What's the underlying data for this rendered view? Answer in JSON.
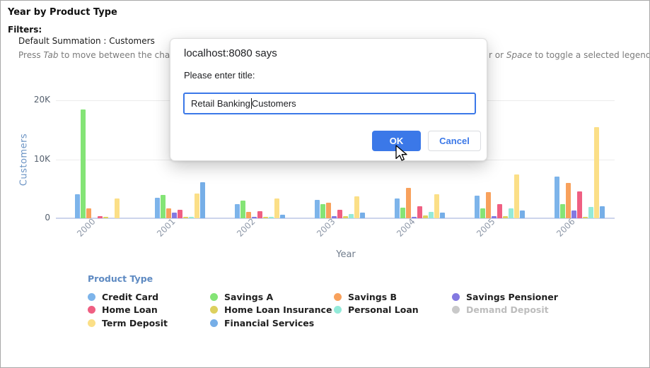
{
  "header": {
    "title": "Year by Product Type",
    "filters_label": "Filters:",
    "filter_value": "Default Summation : Customers",
    "instructions": {
      "left_pre": "Press ",
      "left_key": "Tab",
      "left_post": " to move between the chart data, le",
      "right_pre": "r or ",
      "right_key": "Space",
      "right_post": " to toggle a selected legend item"
    }
  },
  "dialog": {
    "origin": "localhost:8080 says",
    "prompt": "Please enter title:",
    "input_before_caret": "Retail Banking ",
    "input_after_caret": "Customers",
    "ok_label": "OK",
    "cancel_label": "Cancel",
    "accent_color": "#3b78e8"
  },
  "chart_data": {
    "type": "bar",
    "title": "Year by Product Type",
    "xlabel": "Year",
    "ylabel": "Customers",
    "categories": [
      "2000",
      "2001",
      "2002",
      "2003",
      "2004",
      "2005",
      "2006"
    ],
    "ylim": [
      0,
      20000
    ],
    "yticks": [
      {
        "label": "20K",
        "value": 20000
      },
      {
        "label": "10K",
        "value": 10000
      },
      {
        "label": "0",
        "value": 0
      }
    ],
    "grid": true,
    "legend_position": "bottom",
    "legend_title": "Product Type",
    "series": [
      {
        "name": "Credit Card",
        "color": "#7db4ea",
        "values": [
          4100,
          3500,
          2400,
          3100,
          3300,
          3800,
          7100
        ]
      },
      {
        "name": "Savings A",
        "color": "#84e476",
        "values": [
          18500,
          4000,
          3000,
          2400,
          1800,
          1700,
          2400
        ]
      },
      {
        "name": "Savings B",
        "color": "#f8a15c",
        "values": [
          1700,
          1700,
          1100,
          2600,
          5100,
          4400,
          6000
        ]
      },
      {
        "name": "Savings Pensioner",
        "color": "#8379e1",
        "values": [
          0,
          900,
          200,
          300,
          250,
          400,
          1300
        ]
      },
      {
        "name": "Home Loan",
        "color": "#ef5f82",
        "values": [
          400,
          1400,
          1200,
          1400,
          2000,
          2400,
          4500
        ]
      },
      {
        "name": "Home Loan Insurance",
        "color": "#ddd05e",
        "values": [
          250,
          200,
          200,
          350,
          500,
          300,
          200
        ]
      },
      {
        "name": "Personal Loan",
        "color": "#93ead9",
        "values": [
          0,
          200,
          250,
          700,
          1100,
          1700,
          1900
        ]
      },
      {
        "name": "Term Deposit",
        "color": "#fbdf87",
        "values": [
          3400,
          4200,
          3400,
          3700,
          4100,
          7400,
          15400
        ]
      },
      {
        "name": "Financial Services",
        "color": "#76aee7",
        "values": [
          0,
          6100,
          600,
          900,
          1000,
          1300,
          2000
        ]
      }
    ],
    "legend_items": [
      {
        "name": "Credit Card",
        "color": "#7db4ea",
        "disabled": false
      },
      {
        "name": "Savings A",
        "color": "#84e476",
        "disabled": false
      },
      {
        "name": "Savings B",
        "color": "#f8a15c",
        "disabled": false
      },
      {
        "name": "Savings Pensioner",
        "color": "#8379e1",
        "disabled": false
      },
      {
        "name": "Home Loan",
        "color": "#ef5f82",
        "disabled": false
      },
      {
        "name": "Home Loan Insurance",
        "color": "#ddd05e",
        "disabled": false
      },
      {
        "name": "Personal Loan",
        "color": "#93ead9",
        "disabled": false
      },
      {
        "name": "Demand Deposit",
        "color": "#c9c9c9",
        "disabled": true
      },
      {
        "name": "Term Deposit",
        "color": "#fbdf87",
        "disabled": false
      },
      {
        "name": "Financial Services",
        "color": "#76aee7",
        "disabled": false
      }
    ]
  }
}
